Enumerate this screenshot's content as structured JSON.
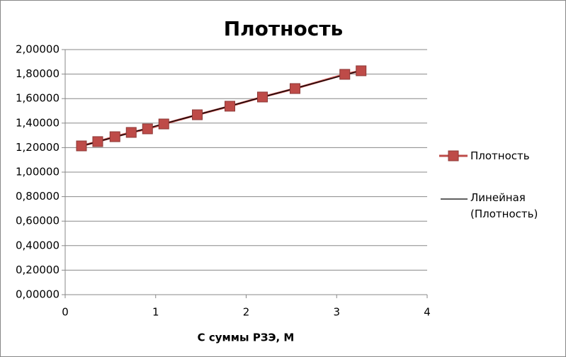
{
  "chart_data": {
    "type": "line",
    "title": "Плотность",
    "x_label": "С суммы РЗЭ, М",
    "xlim": [
      0,
      4
    ],
    "xticks": [
      0,
      1,
      2,
      3,
      4
    ],
    "ylim": [
      0,
      2
    ],
    "yticks": [
      {
        "value": 0,
        "label": "0,00000"
      },
      {
        "value": 0.2,
        "label": "0,20000"
      },
      {
        "value": 0.4,
        "label": "0,40000"
      },
      {
        "value": 0.6,
        "label": "0,60000"
      },
      {
        "value": 0.8,
        "label": "0,80000"
      },
      {
        "value": 1.0,
        "label": "1,00000"
      },
      {
        "value": 1.2,
        "label": "1,20000"
      },
      {
        "value": 1.4,
        "label": "1,40000"
      },
      {
        "value": 1.6,
        "label": "1,60000"
      },
      {
        "value": 1.8,
        "label": "1,80000"
      },
      {
        "value": 2.0,
        "label": "2,00000"
      }
    ],
    "grid": true,
    "series": [
      {
        "name": "Плотность",
        "color": "#be4b48",
        "x": [
          0.18,
          0.36,
          0.55,
          0.73,
          0.91,
          1.09,
          1.46,
          1.82,
          2.18,
          2.54,
          3.09,
          3.27
        ],
        "values": [
          1.214,
          1.249,
          1.289,
          1.324,
          1.353,
          1.393,
          1.468,
          1.538,
          1.613,
          1.682,
          1.798,
          1.827
        ]
      }
    ],
    "trendline": {
      "name": "Линейная (Плотность)",
      "color": "#000000"
    },
    "legend": "right"
  }
}
